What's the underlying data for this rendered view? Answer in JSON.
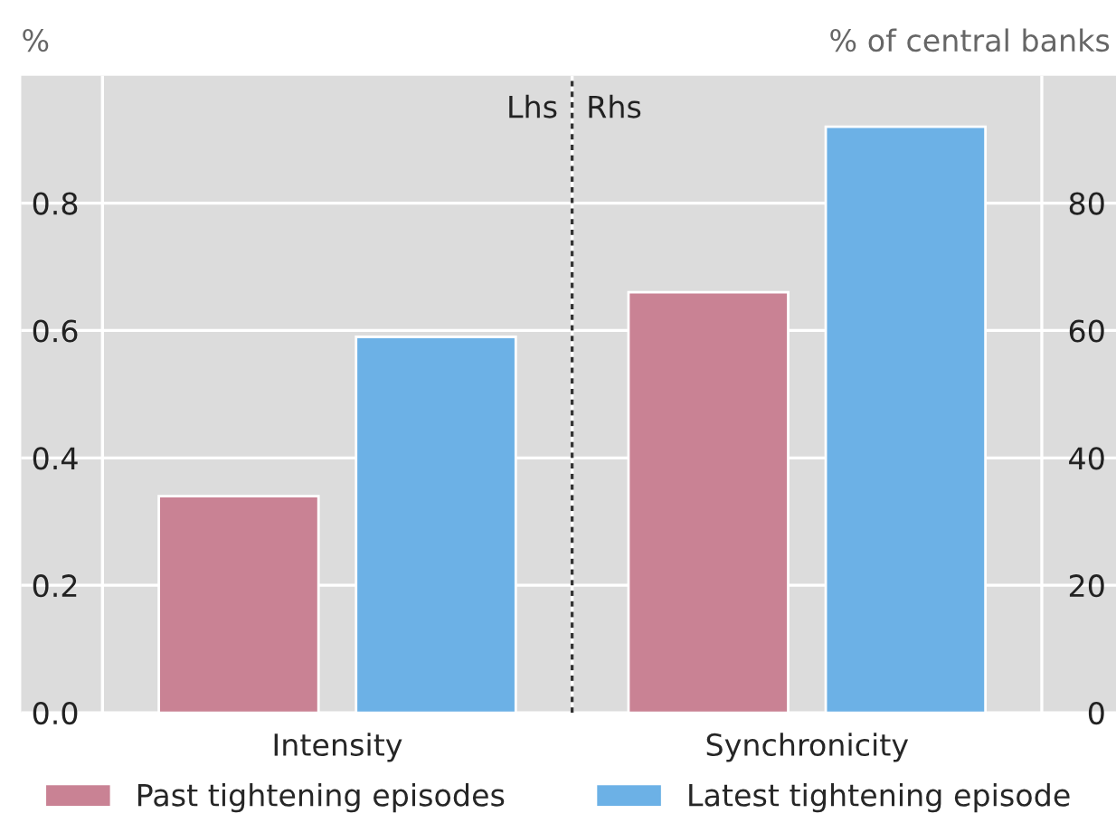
{
  "chart_data": {
    "type": "bar",
    "categories": [
      "Intensity",
      "Synchronicity"
    ],
    "series": [
      {
        "name": "Past tightening episodes",
        "color": "#c98294",
        "values": [
          0.34,
          null
        ]
      },
      {
        "name": "Latest tightening episode",
        "color": "#6cb1e6",
        "values": [
          0.59,
          null
        ]
      },
      {
        "color": "#c98294",
        "values": [
          null,
          66
        ],
        "axis": "y2"
      },
      {
        "color": "#6cb1e6",
        "values": [
          null,
          92
        ],
        "axis": "y2"
      }
    ],
    "ylabel": "%",
    "y2label": "% of central banks",
    "ylim": [
      0,
      1.0
    ],
    "yticks": [
      {
        "value": 0,
        "label": "0.0"
      },
      0.2,
      0.4,
      0.6,
      0.8
    ],
    "y2lim": [
      0,
      100
    ],
    "y2ticks": [
      0,
      20,
      40,
      60,
      80
    ],
    "annotations": [
      "Lhs",
      "Rhs"
    ],
    "grid": "y",
    "legend": "bottom"
  }
}
